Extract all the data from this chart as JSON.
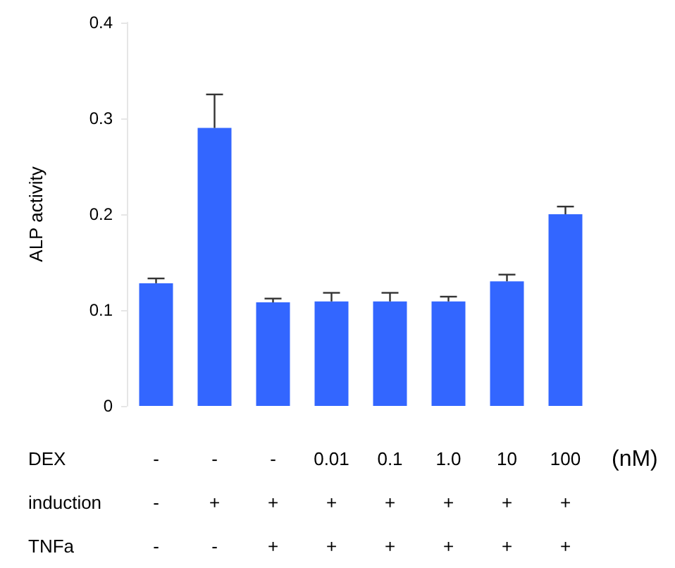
{
  "chart_data": {
    "type": "bar",
    "ylabel": "ALP activity",
    "categories": [
      "-\n-\n-",
      "-\n+\n-",
      "-\n+\n+",
      "0.01\n+\n+",
      "0.1\n+\n+",
      "1.0\n+\n+",
      "10\n+\n+",
      "100\n+\n+"
    ],
    "values": [
      0.128,
      0.29,
      0.108,
      0.109,
      0.109,
      0.109,
      0.13,
      0.2
    ],
    "errors": [
      [
        0.128,
        0.133
      ],
      [
        0.29,
        0.325
      ],
      [
        0.108,
        0.112
      ],
      [
        0.109,
        0.118
      ],
      [
        0.109,
        0.118
      ],
      [
        0.109,
        0.114
      ],
      [
        0.13,
        0.137
      ],
      [
        0.2,
        0.208
      ]
    ],
    "color": "#3366ff",
    "ylim": [
      0,
      0.4
    ],
    "yticks": [
      0,
      0.1,
      0.2,
      0.3,
      0.4
    ],
    "grid": false,
    "annotations": [
      "DEX",
      "induction",
      "TNFa",
      "(nM)"
    ]
  }
}
